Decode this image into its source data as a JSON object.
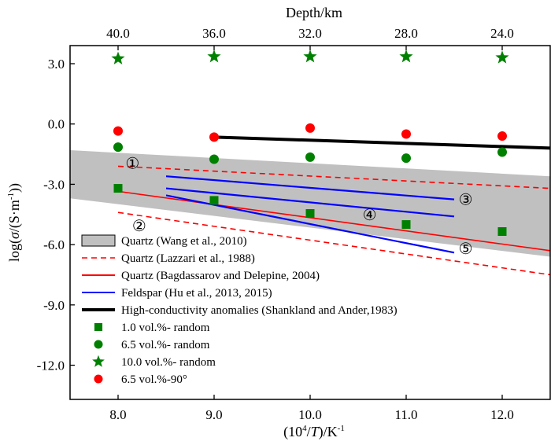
{
  "chart_data": {
    "type": "scatter",
    "xlabel": "(10⁴/T)/K⁻¹",
    "xlabel_parts": {
      "base": "(10",
      "sup1": "4",
      "mid1": "/",
      "italic": "T",
      "mid2": ")/K",
      "sup2": "-1"
    },
    "ylabel": "log(σ/(S·m⁻¹))",
    "ylabel_parts": {
      "pre": "log(",
      "sigma": "σ",
      "mid": "/(S·m",
      "sup": "-1",
      "post": "))"
    },
    "top_axis_title": "Depth/km",
    "xlim": [
      7.5,
      12.5
    ],
    "ylim": [
      -13.7,
      3.9
    ],
    "x_ticks": [
      {
        "value": 8.0,
        "label": "8.0"
      },
      {
        "value": 9.0,
        "label": "9.0"
      },
      {
        "value": 10.0,
        "label": "10.0"
      },
      {
        "value": 11.0,
        "label": "11.0"
      },
      {
        "value": 12.0,
        "label": "12.0"
      }
    ],
    "y_ticks": [
      {
        "value": 3.0,
        "label": "3.0"
      },
      {
        "value": 0.0,
        "label": "0.0"
      },
      {
        "value": -3.0,
        "label": "-3.0"
      },
      {
        "value": -6.0,
        "label": "-6.0"
      },
      {
        "value": -9.0,
        "label": "-9.0"
      },
      {
        "value": -12.0,
        "label": "-12.0"
      }
    ],
    "top_ticks": [
      {
        "value": 8.0,
        "label": "40.0"
      },
      {
        "value": 9.0,
        "label": "36.0"
      },
      {
        "value": 10.0,
        "label": "32.0"
      },
      {
        "value": 11.0,
        "label": "28.0"
      },
      {
        "value": 12.0,
        "label": "24.0"
      }
    ],
    "band": {
      "name": "Quartz (Wang et al., 2010)",
      "color": "#c0c0c0",
      "upper": [
        [
          7.5,
          -1.3
        ],
        [
          12.5,
          -2.6
        ]
      ],
      "lower": [
        [
          7.5,
          -3.7
        ],
        [
          12.5,
          -6.6
        ]
      ]
    },
    "lines": [
      {
        "name": "Quartz (Lazzari et al., 1988)",
        "color": "#ff0000",
        "style": "dashed",
        "width": 1.6,
        "points": [
          [
            8.0,
            -2.1
          ],
          [
            12.5,
            -3.2
          ]
        ]
      },
      {
        "name": "Quartz (Lazzari et al., 1988)",
        "color": "#ff0000",
        "style": "dashed",
        "width": 1.6,
        "points": [
          [
            8.0,
            -4.4
          ],
          [
            12.5,
            -7.5
          ]
        ]
      },
      {
        "name": "Quartz (Bagdassarov and Delepine, 2004)",
        "color": "#ff0000",
        "style": "solid",
        "width": 1.6,
        "points": [
          [
            8.0,
            -3.35
          ],
          [
            12.5,
            -6.3
          ]
        ]
      },
      {
        "name": "Feldspar (Hu et al., 2013, 2015)",
        "color": "#0000ff",
        "style": "solid",
        "width": 2.2,
        "points": [
          [
            8.5,
            -2.6
          ],
          [
            11.5,
            -3.75
          ]
        ]
      },
      {
        "name": "Feldspar (Hu et al., 2013, 2015)",
        "color": "#0000ff",
        "style": "solid",
        "width": 2.2,
        "points": [
          [
            8.5,
            -3.2
          ],
          [
            11.5,
            -4.6
          ]
        ]
      },
      {
        "name": "Feldspar (Hu et al., 2013, 2015)",
        "color": "#0000ff",
        "style": "solid",
        "width": 2.2,
        "points": [
          [
            8.5,
            -3.55
          ],
          [
            11.5,
            -6.4
          ]
        ]
      },
      {
        "name": "High-conductivity anomalies (Shankland and Ander,1983)",
        "color": "#000000",
        "style": "solid",
        "width": 4,
        "points": [
          [
            9.0,
            -0.65
          ],
          [
            12.5,
            -1.2
          ]
        ]
      }
    ],
    "series": [
      {
        "name": "1.0 vol.%- random",
        "marker": "square",
        "color": "#008000",
        "x": [
          8.0,
          9.0,
          10.0,
          11.0,
          12.0
        ],
        "y": [
          -3.2,
          -3.8,
          -4.45,
          -5.0,
          -5.35
        ]
      },
      {
        "name": "6.5 vol.%- random",
        "marker": "circle",
        "color": "#008000",
        "x": [
          8.0,
          9.0,
          10.0,
          11.0,
          12.0
        ],
        "y": [
          -1.15,
          -1.75,
          -1.65,
          -1.7,
          -1.4
        ]
      },
      {
        "name": "10.0 vol.%- random",
        "marker": "star",
        "color": "#008000",
        "x": [
          8.0,
          9.0,
          10.0,
          11.0,
          12.0
        ],
        "y": [
          3.25,
          3.35,
          3.35,
          3.35,
          3.3
        ]
      },
      {
        "name": "6.5 vol.%-90°",
        "marker": "circle",
        "color": "#ff0000",
        "x": [
          8.0,
          9.0,
          10.0,
          11.0,
          12.0
        ],
        "y": [
          -0.35,
          -0.65,
          -0.2,
          -0.5,
          -0.6
        ]
      }
    ],
    "annotations": [
      {
        "label": "①",
        "x": 8.15,
        "y": -1.95
      },
      {
        "label": "②",
        "x": 8.22,
        "y": -5.05
      },
      {
        "label": "③",
        "x": 11.62,
        "y": -3.75
      },
      {
        "label": "④",
        "x": 10.62,
        "y": -4.5
      },
      {
        "label": "⑤",
        "x": 11.62,
        "y": -6.2
      }
    ],
    "legend": {
      "placement": "lower-left",
      "items": [
        {
          "label": "Quartz (Wang et al., 2010)",
          "symbol": "band",
          "color": "#c0c0c0"
        },
        {
          "label": "Quartz (Lazzari et al., 1988)",
          "symbol": "dashed-line",
          "color": "#ff0000"
        },
        {
          "label": "Quartz (Bagdassarov and Delepine, 2004)",
          "symbol": "line",
          "color": "#ff0000"
        },
        {
          "label": "Feldspar (Hu et al., 2013, 2015)",
          "symbol": "line",
          "color": "#0000ff"
        },
        {
          "label": "High-conductivity anomalies (Shankland and Ander,1983)",
          "symbol": "thick-line",
          "color": "#000000"
        },
        {
          "label": "1.0 vol.%- random",
          "symbol": "square",
          "color": "#008000"
        },
        {
          "label": "6.5 vol.%- random",
          "symbol": "circle",
          "color": "#008000"
        },
        {
          "label": "10.0 vol.%- random",
          "symbol": "star",
          "color": "#008000"
        },
        {
          "label": "6.5 vol.%-90°",
          "symbol": "circle",
          "color": "#ff0000"
        }
      ]
    }
  }
}
